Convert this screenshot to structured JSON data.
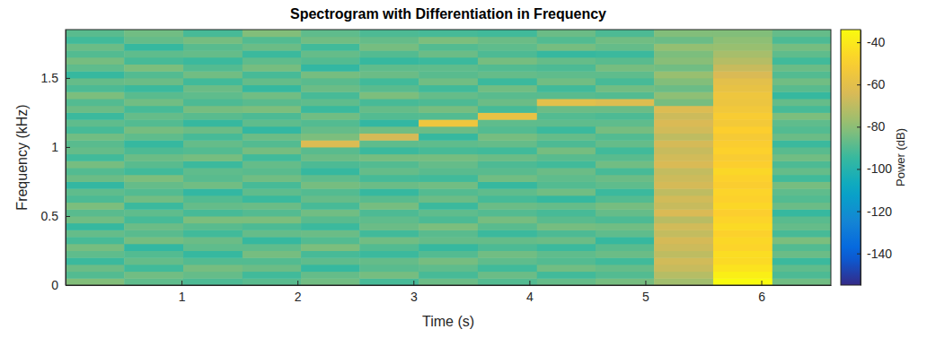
{
  "chart_data": {
    "type": "heatmap",
    "title": "Spectrogram with Differentiation in Frequency",
    "xlabel": "Time (s)",
    "ylabel": "Frequency (kHz)",
    "xlim": [
      0,
      6.6
    ],
    "xticks": [
      1,
      2,
      3,
      4,
      5,
      6
    ],
    "ylim": [
      0,
      1.85
    ],
    "yticks": [
      0,
      0.5,
      1,
      1.5
    ],
    "x": [
      0.25,
      0.76,
      1.27,
      1.78,
      2.28,
      2.79,
      3.3,
      3.81,
      4.32,
      4.82,
      5.33,
      5.84,
      6.35
    ],
    "y": [
      0.025,
      0.075,
      0.125,
      0.175,
      0.225,
      0.275,
      0.325,
      0.375,
      0.425,
      0.475,
      0.525,
      0.575,
      0.625,
      0.675,
      0.725,
      0.775,
      0.825,
      0.875,
      0.925,
      0.975,
      1.025,
      1.075,
      1.125,
      1.175,
      1.225,
      1.275,
      1.325,
      1.375,
      1.425,
      1.475,
      1.525,
      1.575,
      1.625,
      1.675,
      1.725,
      1.775,
      1.825
    ],
    "values": [
      [
        -82,
        -90,
        -86,
        -94,
        -88,
        -84,
        -92,
        -87,
        -95,
        -85,
        -89,
        -83,
        -91,
        -88,
        -96,
        -86,
        -90,
        -84,
        -93,
        -87,
        -89,
        -85,
        -92,
        -88,
        -94,
        -86,
        -90,
        -83,
        -91,
        -87,
        -95,
        -88,
        -84,
        -90,
        -86,
        -93,
        -89
      ],
      [
        -88,
        -85,
        -93,
        -87,
        -90,
        -96,
        -84,
        -89,
        -86,
        -92,
        -88,
        -94,
        -85,
        -90,
        -87,
        -83,
        -93,
        -89,
        -86,
        -91,
        -95,
        -88,
        -84,
        -90,
        -87,
        -92,
        -85,
        -89,
        -94,
        -86,
        -90,
        -83,
        -92,
        -88,
        -95,
        -87,
        -85
      ],
      [
        -91,
        -87,
        -84,
        -90,
        -95,
        -88,
        -86,
        -93,
        -89,
        -83,
        -92,
        -87,
        -90,
        -96,
        -85,
        -89,
        -88,
        -94,
        -84,
        -90,
        -87,
        -92,
        -86,
        -95,
        -89,
        -84,
        -91,
        -88,
        -86,
        -93,
        -85,
        -90,
        -94,
        -87,
        -89,
        -84,
        -92
      ],
      [
        -89,
        -93,
        -86,
        -90,
        -84,
        -88,
        -95,
        -87,
        -91,
        -83,
        -90,
        -86,
        -94,
        -88,
        -92,
        -85,
        -89,
        -87,
        -93,
        -84,
        -90,
        -86,
        -96,
        -88,
        -91,
        -83,
        -89,
        -85,
        -95,
        -87,
        -92,
        -84,
        -88,
        -94,
        -86,
        -90,
        -82
      ],
      [
        -85,
        -87,
        -95,
        -88,
        -92,
        -83,
        -90,
        -86,
        -94,
        -89,
        -85,
        -92,
        -87,
        -90,
        -84,
        -88,
        -95,
        -91,
        -86,
        -89,
        -63,
        -83,
        -87,
        -90,
        -85,
        -94,
        -88,
        -92,
        -86,
        -89,
        -84,
        -96,
        -90,
        -87,
        -93,
        -85,
        -88
      ],
      [
        -92,
        -84,
        -89,
        -87,
        -94,
        -90,
        -85,
        -93,
        -86,
        -88,
        -91,
        -84,
        -89,
        -95,
        -86,
        -92,
        -87,
        -90,
        -84,
        -94,
        -88,
        -65,
        -85,
        -96,
        -90,
        -87,
        -92,
        -83,
        -89,
        -93,
        -86,
        -88,
        -95,
        -90,
        -84,
        -87,
        -91
      ],
      [
        -86,
        -92,
        -88,
        -84,
        -90,
        -95,
        -87,
        -89,
        -83,
        -91,
        -88,
        -94,
        -86,
        -90,
        -85,
        -93,
        -89,
        -87,
        -84,
        -92,
        -88,
        -95,
        -86,
        -55,
        -90,
        -84,
        -91,
        -87,
        -93,
        -85,
        -89,
        -88,
        -94,
        -86,
        -90,
        -83,
        -92
      ],
      [
        -90,
        -86,
        -93,
        -88,
        -85,
        -91,
        -87,
        -94,
        -89,
        -84,
        -90,
        -86,
        -92,
        -88,
        -95,
        -85,
        -89,
        -91,
        -86,
        -93,
        -87,
        -84,
        -90,
        -88,
        -58,
        -92,
        -86,
        -89,
        -85,
        -94,
        -87,
        -90,
        -84,
        -91,
        -88,
        -86,
        -93
      ],
      [
        -87,
        -93,
        -85,
        -90,
        -88,
        -94,
        -86,
        -91,
        -84,
        -89,
        -92,
        -87,
        -95,
        -85,
        -90,
        -88,
        -86,
        -93,
        -89,
        -84,
        -91,
        -87,
        -94,
        -88,
        -90,
        -86,
        -60,
        -89,
        -93,
        -85,
        -88,
        -91,
        -87,
        -95,
        -84,
        -90,
        -86
      ],
      [
        -84,
        -90,
        -87,
        -93,
        -86,
        -89,
        -95,
        -88,
        -85,
        -91,
        -87,
        -84,
        -90,
        -94,
        -88,
        -86,
        -92,
        -85,
        -89,
        -93,
        -87,
        -90,
        -84,
        -88,
        -91,
        -86,
        -62,
        -90,
        -85,
        -92,
        -88,
        -84,
        -89,
        -94,
        -87,
        -85,
        -91
      ],
      [
        -76,
        -72,
        -68,
        -66,
        -70,
        -67,
        -65,
        -69,
        -66,
        -71,
        -64,
        -68,
        -66,
        -70,
        -65,
        -67,
        -69,
        -64,
        -66,
        -68,
        -65,
        -70,
        -66,
        -64,
        -67,
        -63,
        -84,
        -80,
        -86,
        -82,
        -78,
        -85,
        -81,
        -83,
        -79,
        -86,
        -82
      ],
      [
        -34,
        -38,
        -42,
        -45,
        -44,
        -47,
        -46,
        -48,
        -45,
        -47,
        -49,
        -46,
        -48,
        -47,
        -50,
        -48,
        -46,
        -49,
        -51,
        -48,
        -50,
        -52,
        -49,
        -53,
        -51,
        -54,
        -56,
        -55,
        -58,
        -60,
        -64,
        -68,
        -72,
        -75,
        -78,
        -80,
        -82
      ],
      [
        -85,
        -91,
        -88,
        -94,
        -86,
        -90,
        -83,
        -92,
        -87,
        -89,
        -95,
        -86,
        -90,
        -88,
        -84,
        -93,
        -87,
        -91,
        -85,
        -89,
        -94,
        -86,
        -90,
        -88,
        -83,
        -92,
        -87,
        -95,
        -89,
        -85,
        -90,
        -86,
        -93,
        -88,
        -84,
        -91,
        -87
      ]
    ],
    "colorbar": {
      "label": "Power (dB)",
      "lim": [
        -155,
        -34
      ],
      "ticks": [
        -140,
        -120,
        -100,
        -80,
        -60,
        -40
      ]
    }
  }
}
